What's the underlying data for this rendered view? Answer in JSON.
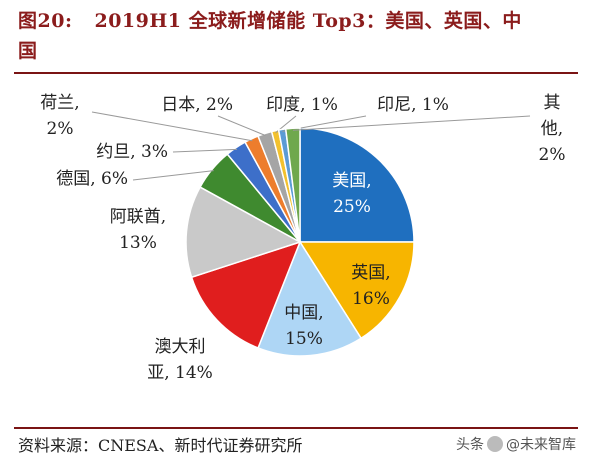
{
  "figure": {
    "number": "图20:",
    "title_line1": "2019H1 全球新增储能 Top3：美国、英国、中",
    "title_line2": "国"
  },
  "chart_data": {
    "type": "pie",
    "title": "2019H1 全球新增储能 Top3：美国、英国、中国",
    "slices": [
      {
        "label": "美国",
        "value": 25,
        "text": "25%",
        "color": "#1f6fbf",
        "label_position": "inside",
        "text_color": "#ffffff"
      },
      {
        "label": "英国",
        "value": 16,
        "text": "16%",
        "color": "#f7b500",
        "label_position": "inside",
        "text_color": "#222222"
      },
      {
        "label": "中国",
        "value": 15,
        "text": "15%",
        "color": "#aed6f5",
        "label_position": "inside",
        "text_color": "#222222"
      },
      {
        "label": "澳大利亚",
        "value": 14,
        "text": "14%",
        "color": "#e01e1e",
        "label_position": "outside",
        "text_color": "#222222"
      },
      {
        "label": "阿联酋",
        "value": 13,
        "text": "13%",
        "color": "#c9c9c9",
        "label_position": "outside",
        "text_color": "#222222"
      },
      {
        "label": "德国",
        "value": 6,
        "text": "6%",
        "color": "#3f8a2f",
        "label_position": "outside",
        "text_color": "#222222"
      },
      {
        "label": "约旦",
        "value": 3,
        "text": "3%",
        "color": "#3d6fc9",
        "label_position": "outside",
        "text_color": "#222222"
      },
      {
        "label": "荷兰",
        "value": 2,
        "text": "2%",
        "color": "#ed7d2d",
        "label_position": "outside",
        "text_color": "#222222"
      },
      {
        "label": "日本",
        "value": 2,
        "text": "2%",
        "color": "#a5a5a5",
        "label_position": "outside",
        "text_color": "#222222"
      },
      {
        "label": "印度",
        "value": 1,
        "text": "1%",
        "color": "#f2c12e",
        "label_position": "outside",
        "text_color": "#222222"
      },
      {
        "label": "印尼",
        "value": 1,
        "text": "1%",
        "color": "#5b9bd5",
        "label_position": "outside",
        "text_color": "#222222"
      },
      {
        "label": "其他",
        "value": 2,
        "text": "2%",
        "color": "#6fa84d",
        "label_position": "outside",
        "text_color": "#222222"
      }
    ],
    "legend": "none"
  },
  "footer": {
    "source": "资料来源：CNESA、新时代证券研究所",
    "watermark_a": "头条",
    "watermark_b": "@未来智库"
  }
}
